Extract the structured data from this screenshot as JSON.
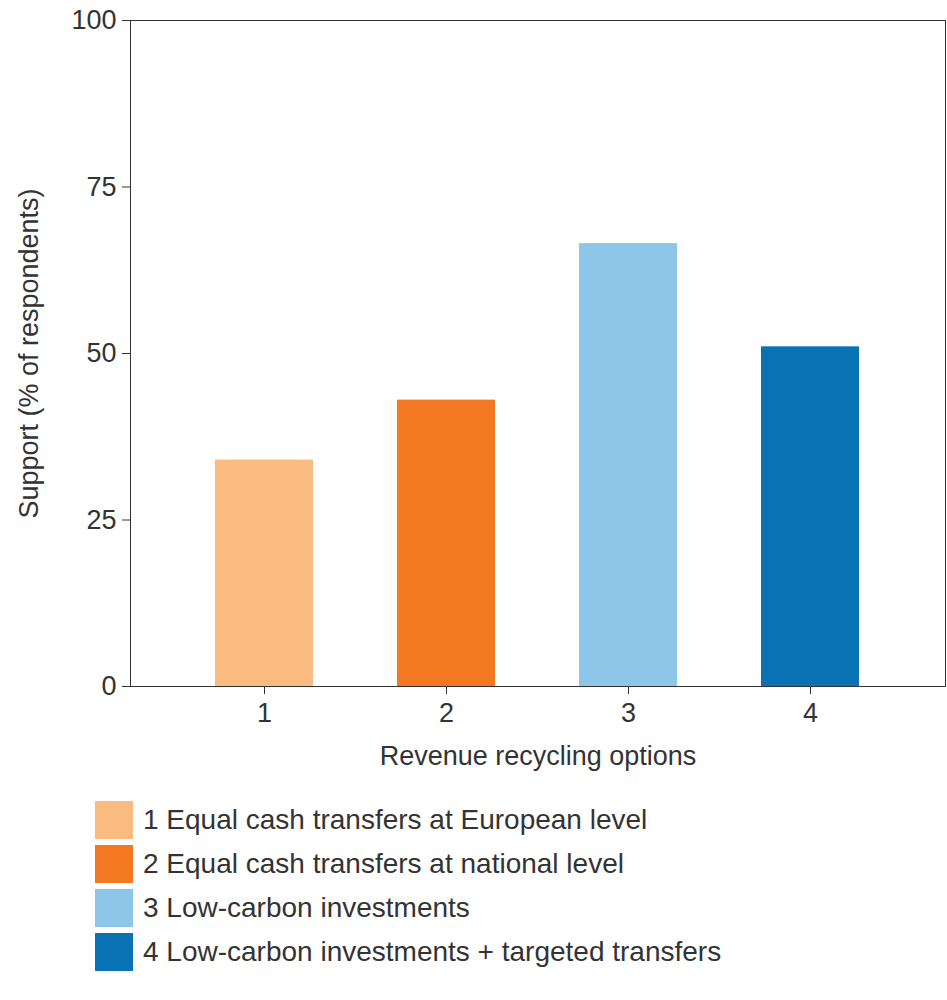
{
  "chart_data": {
    "type": "bar",
    "categories": [
      "1",
      "2",
      "3",
      "4"
    ],
    "values": [
      34,
      43,
      66.5,
      51
    ],
    "colors": [
      "#f9bb80",
      "#f47721",
      "#8ec6ea",
      "#0872b4"
    ],
    "xlabel": "Revenue recycling options",
    "ylabel": "Support (% of respondents)",
    "legend_labels": [
      "1 Equal cash transfers at European level",
      "2 Equal cash transfers at national level",
      "3 Low-carbon investments",
      "4 Low-carbon investments + targeted transfers"
    ],
    "ylim": [
      0,
      100
    ],
    "yticks": [
      0,
      25,
      50,
      75,
      100
    ],
    "grid": false
  }
}
